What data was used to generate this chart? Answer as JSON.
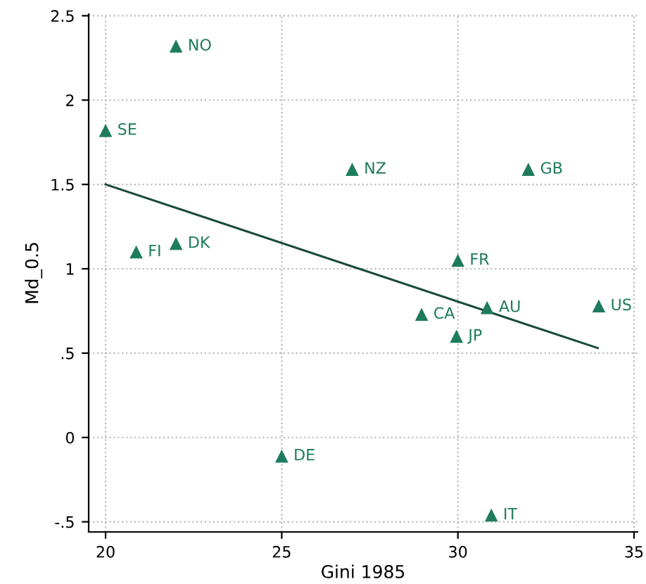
{
  "chart_data": {
    "type": "scatter",
    "xlabel": "Gini 1985",
    "ylabel": "Md_0.5",
    "xlim": [
      19.52,
      35.1
    ],
    "ylim": [
      -0.56,
      2.51
    ],
    "xticks": [
      20,
      25,
      30,
      35
    ],
    "yticks": [
      {
        "value": -0.5,
        "label": "-.5"
      },
      0,
      {
        "value": 0.5,
        "label": ".5"
      },
      1,
      1.5,
      2,
      2.5
    ],
    "grid": true,
    "series": [
      {
        "marker": "triangle",
        "color": "#1e7b5e",
        "x": [
          22,
          20,
          27,
          32,
          22,
          20.87,
          30,
          28.97,
          30.83,
          34,
          29.96,
          25,
          30.95
        ],
        "values": [
          2.32,
          1.82,
          1.59,
          1.59,
          1.15,
          1.1,
          1.05,
          0.73,
          0.77,
          0.78,
          0.6,
          -0.11,
          -0.46
        ]
      },
      {
        "type": "line",
        "color": "#1a4a3a",
        "x": [
          20,
          33.97
        ],
        "values": [
          1.5,
          0.53
        ]
      }
    ],
    "annotations": [
      {
        "text": "NO",
        "x": 22,
        "y": 2.32
      },
      {
        "text": "SE",
        "x": 20,
        "y": 1.82
      },
      {
        "text": "NZ",
        "x": 27,
        "y": 1.59
      },
      {
        "text": "GB",
        "x": 32,
        "y": 1.59
      },
      {
        "text": "DK",
        "x": 22,
        "y": 1.15
      },
      {
        "text": "FI",
        "x": 20.87,
        "y": 1.1
      },
      {
        "text": "FR",
        "x": 30,
        "y": 1.05
      },
      {
        "text": "CA",
        "x": 28.97,
        "y": 0.73
      },
      {
        "text": "AU",
        "x": 30.83,
        "y": 0.77
      },
      {
        "text": "US",
        "x": 34,
        "y": 0.78
      },
      {
        "text": "JP",
        "x": 29.96,
        "y": 0.6
      },
      {
        "text": "DE",
        "x": 25,
        "y": -0.11
      },
      {
        "text": "IT",
        "x": 30.95,
        "y": -0.46
      }
    ]
  }
}
